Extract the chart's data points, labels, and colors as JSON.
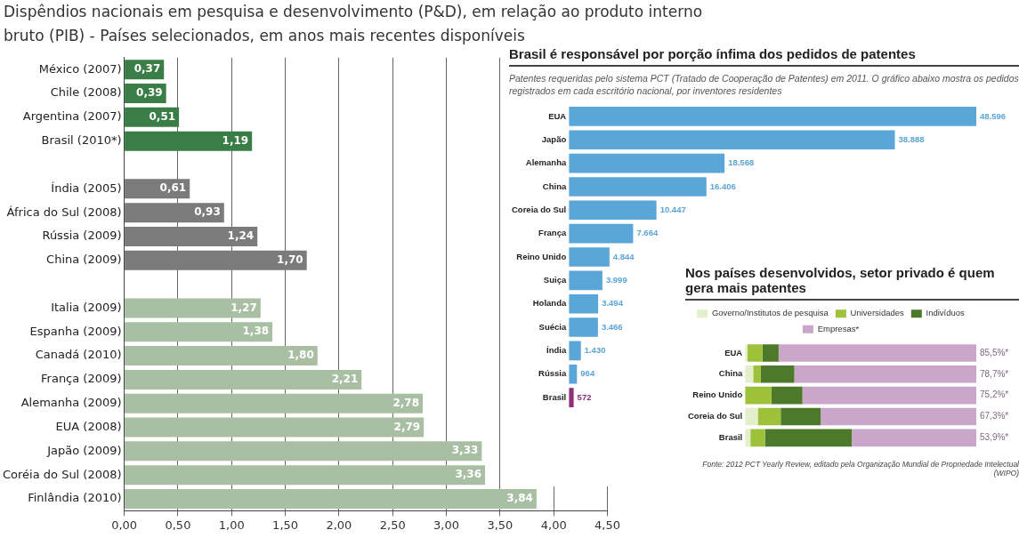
{
  "chart_data": [
    {
      "type": "bar",
      "orientation": "horizontal",
      "title": "Dispêndios nacionais em pesquisa e desenvolvimento (P&D), em relação ao produto interno bruto (PIB) - Países selecionados, em anos mais recentes disponíveis",
      "categories": [
        "México (2007)",
        "Chile (2008)",
        "Argentina (2007)",
        "Brasil (2010*)",
        null,
        "Índia (2005)",
        "África do Sul (2008)",
        "Rússia (2009)",
        "China (2009)",
        null,
        "Italia (2009)",
        "Espanha (2009)",
        "Canadá (2010)",
        "França (2009)",
        "Alemanha (2009)",
        "EUA (2008)",
        "Japão (2009)",
        "Coréia do Sul (2008)",
        "Finlândia (2010)"
      ],
      "values": [
        0.37,
        0.39,
        0.51,
        1.19,
        null,
        0.61,
        0.93,
        1.24,
        1.7,
        null,
        1.27,
        1.38,
        1.8,
        2.21,
        2.78,
        2.79,
        3.33,
        3.36,
        3.84
      ],
      "value_labels": [
        "0,37",
        "0,39",
        "0,51",
        "1,19",
        null,
        "0,61",
        "0,93",
        "1,24",
        "1,70",
        null,
        "1,27",
        "1,38",
        "1,80",
        "2,21",
        "2,78",
        "2,79",
        "3,33",
        "3,36",
        "3,84"
      ],
      "colors": [
        "#3b7d46",
        "#3b7d46",
        "#3b7d46",
        "#3b7d46",
        "#3b7d46",
        "#7b7b7b",
        "#7b7b7b",
        "#7b7b7b",
        "#7b7b7b",
        "#7b7b7b",
        "#a9bfa3",
        "#a9bfa3",
        "#a9bfa3",
        "#a9bfa3",
        "#a9bfa3",
        "#a9bfa3",
        "#a9bfa3",
        "#a9bfa3",
        "#a9bfa3"
      ],
      "xlim": [
        0,
        4.5
      ],
      "xticks": [
        {
          "value": 0,
          "label": "0,00"
        },
        {
          "value": 0.5,
          "label": "0,50"
        },
        {
          "value": 1,
          "label": "1,00"
        },
        {
          "value": 1.5,
          "label": "1,50"
        },
        {
          "value": 2,
          "label": "2,00"
        },
        {
          "value": 2.5,
          "label": "2,50"
        },
        {
          "value": 3,
          "label": "3,00"
        },
        {
          "value": 3.5,
          "label": "3,50"
        },
        {
          "value": 4,
          "label": "4,00"
        },
        {
          "value": 4.5,
          "label": "4,50"
        }
      ],
      "grid": "x"
    },
    {
      "type": "bar",
      "orientation": "horizontal",
      "title": "Brasil é responsável por porção ínfima dos pedidos de patentes",
      "subtitle": "Patentes requeridas pelo sistema PCT (Tratado de Cooperação de Patentes) em 2011. O gráfico abaixo mostra os pedidos registrados em cada escritório nacional, por inventores residentes",
      "categories": [
        "EUA",
        "Japão",
        "Alemanha",
        "China",
        "Coreia do Sul",
        "França",
        "Reino Unido",
        "Suiça",
        "Holanda",
        "Suécia",
        "Índia",
        "Rússia",
        "Brasil"
      ],
      "values": [
        48596,
        38888,
        18568,
        16406,
        10447,
        7664,
        4844,
        3999,
        3494,
        3466,
        1430,
        964,
        572
      ],
      "value_labels": [
        "48.596",
        "38.888",
        "18.568",
        "16.406",
        "10.447",
        "7.664",
        "4.844",
        "3.999",
        "3.494",
        "3.466",
        "1.430",
        "964",
        "572"
      ],
      "colors": [
        "#5aa6d8",
        "#5aa6d8",
        "#5aa6d8",
        "#5aa6d8",
        "#5aa6d8",
        "#5aa6d8",
        "#5aa6d8",
        "#5aa6d8",
        "#5aa6d8",
        "#5aa6d8",
        "#5aa6d8",
        "#5aa6d8",
        "#8e2f7a"
      ],
      "tick_labels": "y"
    },
    {
      "type": "bar",
      "orientation": "horizontal",
      "stacked": true,
      "title": "Nos países desenvolvidos, setor privado é quem gera mais patentes",
      "categories": [
        "EUA",
        "China",
        "Reino Unido",
        "Coreia do Sul",
        "Brasil"
      ],
      "series": [
        {
          "name": "Governo/Institutos de pesquisa",
          "color": "#e3eecb",
          "values": [
            1.0,
            3.5,
            0,
            5.5,
            2.3
          ]
        },
        {
          "name": "Universidades",
          "color": "#9dc13a",
          "values": [
            6.5,
            3.3,
            11.4,
            9.9,
            6.3
          ]
        },
        {
          "name": "Indivíduos",
          "color": "#4d7a2a",
          "values": [
            7.0,
            14.5,
            13.4,
            17.3,
            37.5
          ]
        },
        {
          "name": "Empresas*",
          "color": "#cba6cb",
          "values": [
            85.5,
            78.7,
            75.2,
            67.3,
            53.9
          ],
          "value_labels": [
            "85,5%*",
            "78,7%*",
            "75,2%*",
            "67,3%*",
            "53,9%*"
          ]
        }
      ],
      "legend": "top",
      "tick_labels": "y",
      "annotations": [
        "Fonte: 2012 PCT Yearly Review, editado pela Organização Mundial de Propriedade Intelectual (WIPO)"
      ]
    }
  ]
}
